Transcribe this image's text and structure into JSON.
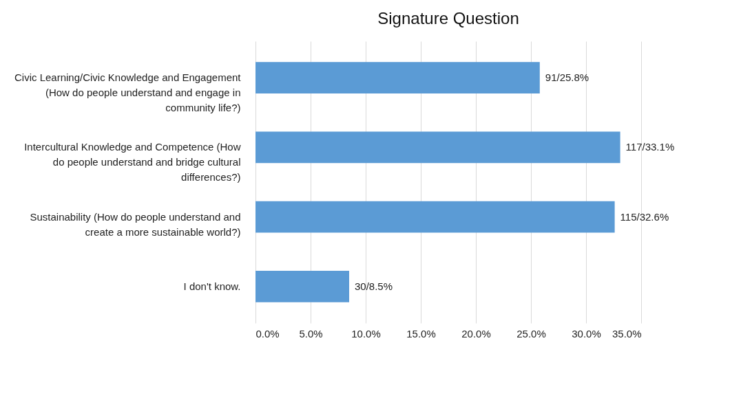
{
  "chart_data": {
    "type": "bar",
    "orientation": "horizontal",
    "title": "Signature Question",
    "categories": [
      "Civic Learning/Civic Knowledge and Engagement (How do people understand and engage in community life?)",
      "Intercultural Knowledge and Competence (How do people understand and bridge cultural differences?)",
      "Sustainability (How do people understand and create a more sustainable world?)",
      "I don't know."
    ],
    "values": [
      25.8,
      33.1,
      32.6,
      8.5
    ],
    "value_labels": [
      "91/25.8%",
      "117/33.1%",
      "115/32.6%",
      "30/8.5%"
    ],
    "color": "#5b9bd5",
    "xlim": [
      0,
      35
    ],
    "xticks": [
      {
        "value": 0,
        "label": "0.0%"
      },
      {
        "value": 5,
        "label": "5.0%"
      },
      {
        "value": 10,
        "label": "10.0%"
      },
      {
        "value": 15,
        "label": "15.0%"
      },
      {
        "value": 20,
        "label": "20.0%"
      },
      {
        "value": 25,
        "label": "25.0%"
      },
      {
        "value": 30,
        "label": "30.0%"
      },
      {
        "value": 35,
        "label": "35.0%"
      }
    ],
    "grid": "x"
  }
}
